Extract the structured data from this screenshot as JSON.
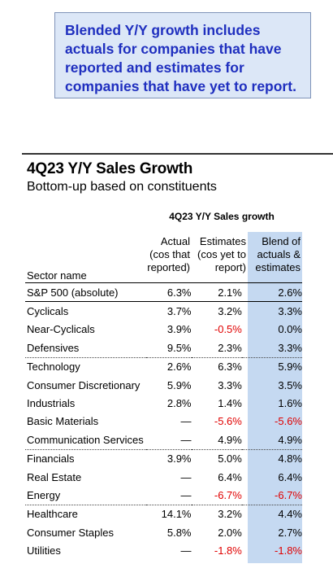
{
  "note": "Blended Y/Y growth includes actuals for companies that have reported and estimates for companies that have yet to report.",
  "title": "4Q23 Y/Y Sales Growth",
  "subtitle": "Bottom-up based on constituents",
  "group_title": "4Q23 Y/Y Sales growth",
  "headers": {
    "sector": "Sector name",
    "actual": [
      "Actual",
      "(cos that",
      "reported)"
    ],
    "estimates": [
      "Estimates",
      "(cos yet to",
      "report)"
    ],
    "blend": [
      "Blend of",
      "actuals &",
      "estimates"
    ]
  },
  "colors": {
    "negative": "#e00000",
    "blend_column": "#c5d9f1",
    "note_text": "#1f2fbf",
    "note_bg": "#dce7f7"
  },
  "chart_data": {
    "type": "table",
    "columns": [
      "Sector name",
      "Actual (cos that reported)",
      "Estimates (cos yet to report)",
      "Blend of actuals & estimates"
    ],
    "rows": [
      {
        "sector": "S&P 500 (absolute)",
        "actual": "6.3%",
        "estimates": "2.1%",
        "blend": "2.6%",
        "group_start": false
      },
      {
        "sector": "Cyclicals",
        "actual": "3.7%",
        "estimates": "3.2%",
        "blend": "3.3%",
        "group_start": true
      },
      {
        "sector": "Near-Cyclicals",
        "actual": "3.9%",
        "estimates": "-0.5%",
        "blend": "0.0%",
        "group_start": false
      },
      {
        "sector": "Defensives",
        "actual": "9.5%",
        "estimates": "2.3%",
        "blend": "3.3%",
        "group_start": false
      },
      {
        "sector": "Technology",
        "actual": "2.6%",
        "estimates": "6.3%",
        "blend": "5.9%",
        "group_start": true
      },
      {
        "sector": "Consumer Discretionary",
        "actual": "5.9%",
        "estimates": "3.3%",
        "blend": "3.5%",
        "group_start": false
      },
      {
        "sector": "Industrials",
        "actual": "2.8%",
        "estimates": "1.4%",
        "blend": "1.6%",
        "group_start": false
      },
      {
        "sector": "Basic Materials",
        "actual": "—",
        "estimates": "-5.6%",
        "blend": "-5.6%",
        "group_start": false
      },
      {
        "sector": "Communication Services",
        "actual": "—",
        "estimates": "4.9%",
        "blend": "4.9%",
        "group_start": false
      },
      {
        "sector": "Financials",
        "actual": "3.9%",
        "estimates": "5.0%",
        "blend": "4.8%",
        "group_start": true
      },
      {
        "sector": "Real Estate",
        "actual": "—",
        "estimates": "6.4%",
        "blend": "6.4%",
        "group_start": false
      },
      {
        "sector": "Energy",
        "actual": "—",
        "estimates": "-6.7%",
        "blend": "-6.7%",
        "group_start": false
      },
      {
        "sector": "Healthcare",
        "actual": "14.1%",
        "estimates": "3.2%",
        "blend": "4.4%",
        "group_start": true
      },
      {
        "sector": "Consumer Staples",
        "actual": "5.8%",
        "estimates": "2.0%",
        "blend": "2.7%",
        "group_start": false
      },
      {
        "sector": "Utilities",
        "actual": "—",
        "estimates": "-1.8%",
        "blend": "-1.8%",
        "group_start": false
      }
    ]
  }
}
